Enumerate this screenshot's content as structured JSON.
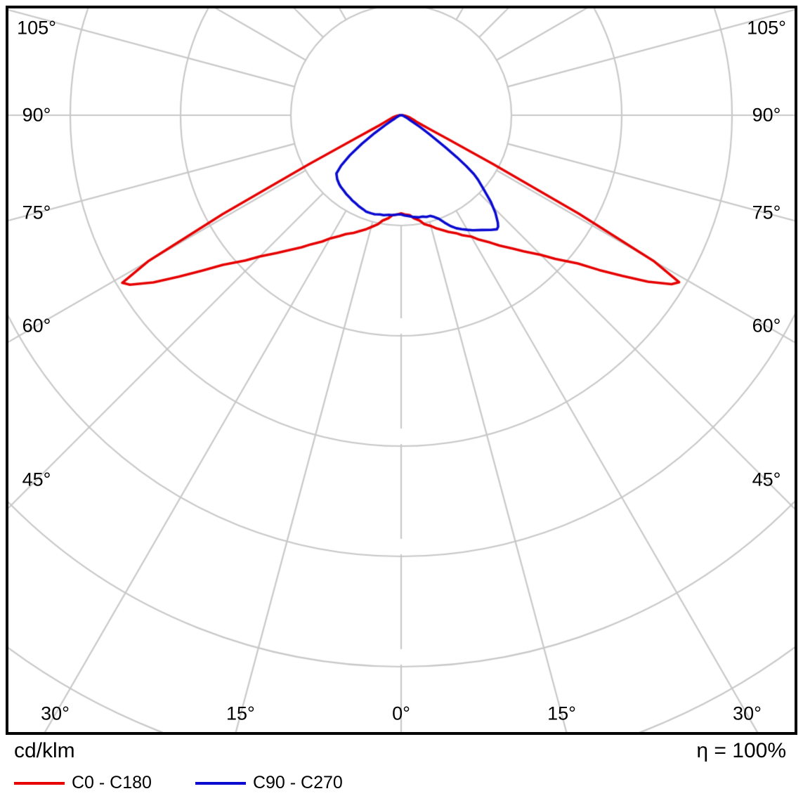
{
  "chart_data": {
    "type": "polar",
    "subtype": "photometric-intensity-distribution",
    "units_label": "cd/klm",
    "efficiency_label": "η = 100%",
    "angle_label_suffix": "°",
    "angle_ticks_side_deg": [
      105,
      90,
      75,
      60,
      45
    ],
    "angle_ticks_bottom_deg": [
      30,
      15
    ],
    "angle_tick_center_deg": 0,
    "gamma_axis": {
      "min": -105,
      "max": 105,
      "tick_step_deg": 15
    },
    "r_axis": {
      "rings": 6,
      "ring_step_cd_klm": 100,
      "labels_visible": false
    },
    "grid_color": "#c8c8c8",
    "background_color": "#ffffff",
    "legend": [
      {
        "label": "C0 - C180",
        "color": "#e60000"
      },
      {
        "label": "C90 - C270",
        "color": "#0a0ad0"
      }
    ],
    "series": [
      {
        "name": "C0 - C180",
        "color": "#e60000",
        "points": [
          [
            -90,
            1
          ],
          [
            -85,
            3
          ],
          [
            -80,
            5
          ],
          [
            -75,
            8
          ],
          [
            -70,
            12
          ],
          [
            -67,
            16
          ],
          [
            -65,
            22
          ],
          [
            -64,
            30
          ],
          [
            -63,
            48
          ],
          [
            -62,
            95
          ],
          [
            -61,
            185
          ],
          [
            -60,
            265
          ],
          [
            -59,
            295
          ],
          [
            -58,
            290
          ],
          [
            -56,
            271
          ],
          [
            -54,
            249
          ],
          [
            -52,
            229
          ],
          [
            -50,
            211
          ],
          [
            -47,
            193
          ],
          [
            -45,
            181
          ],
          [
            -42,
            168
          ],
          [
            -40,
            160
          ],
          [
            -37,
            150
          ],
          [
            -35,
            143
          ],
          [
            -32,
            135
          ],
          [
            -30,
            129
          ],
          [
            -27,
            123
          ],
          [
            -25,
            119
          ],
          [
            -22,
            115
          ],
          [
            -20,
            112
          ],
          [
            -17,
            108
          ],
          [
            -15,
            105
          ],
          [
            -12,
            101
          ],
          [
            -10,
            97
          ],
          [
            -7,
            94
          ],
          [
            -5,
            91
          ],
          [
            -2,
            90
          ],
          [
            0,
            89
          ],
          [
            2,
            90
          ],
          [
            5,
            91
          ],
          [
            7,
            94
          ],
          [
            10,
            97
          ],
          [
            12,
            101
          ],
          [
            15,
            104
          ],
          [
            17,
            107
          ],
          [
            20,
            111
          ],
          [
            22,
            114
          ],
          [
            25,
            118
          ],
          [
            27,
            122
          ],
          [
            30,
            127
          ],
          [
            32,
            133
          ],
          [
            35,
            141
          ],
          [
            37,
            148
          ],
          [
            40,
            158
          ],
          [
            42,
            166
          ],
          [
            45,
            179
          ],
          [
            47,
            191
          ],
          [
            50,
            209
          ],
          [
            52,
            228
          ],
          [
            54,
            248
          ],
          [
            56,
            270
          ],
          [
            58,
            289
          ],
          [
            59,
            294
          ],
          [
            60,
            264
          ],
          [
            61,
            184
          ],
          [
            62,
            94
          ],
          [
            63,
            47
          ],
          [
            64,
            29
          ],
          [
            65,
            21
          ],
          [
            67,
            15
          ],
          [
            70,
            12
          ],
          [
            75,
            8
          ],
          [
            80,
            5
          ],
          [
            85,
            3
          ],
          [
            90,
            1
          ]
        ]
      },
      {
        "name": "C90 - C270",
        "color": "#0a0ad0",
        "points": [
          [
            -90,
            0
          ],
          [
            -85,
            1
          ],
          [
            -80,
            1
          ],
          [
            -75,
            2
          ],
          [
            -70,
            3
          ],
          [
            -65,
            5
          ],
          [
            -62,
            7
          ],
          [
            -60,
            10
          ],
          [
            -58,
            17
          ],
          [
            -56,
            29
          ],
          [
            -54,
            44
          ],
          [
            -52,
            59
          ],
          [
            -50,
            71
          ],
          [
            -48,
            79
          ],
          [
            -45,
            82
          ],
          [
            -42,
            84
          ],
          [
            -40,
            85
          ],
          [
            -37,
            86
          ],
          [
            -35,
            87
          ],
          [
            -32,
            88
          ],
          [
            -30,
            89
          ],
          [
            -27,
            90
          ],
          [
            -25,
            91
          ],
          [
            -22,
            92
          ],
          [
            -20,
            93
          ],
          [
            -17,
            93
          ],
          [
            -15,
            93
          ],
          [
            -12,
            92
          ],
          [
            -10,
            92
          ],
          [
            -7,
            91
          ],
          [
            -5,
            91
          ],
          [
            -2,
            90
          ],
          [
            0,
            90
          ],
          [
            2,
            91
          ],
          [
            5,
            92
          ],
          [
            7,
            93
          ],
          [
            10,
            94
          ],
          [
            12,
            94
          ],
          [
            14,
            95
          ],
          [
            16,
            95
          ],
          [
            18,
            97
          ],
          [
            20,
            100
          ],
          [
            22,
            105
          ],
          [
            24,
            110
          ],
          [
            26,
            114
          ],
          [
            28,
            117
          ],
          [
            30,
            120
          ],
          [
            32,
            123
          ],
          [
            35,
            127
          ],
          [
            38,
            132
          ],
          [
            40,
            135
          ],
          [
            41,
            134
          ],
          [
            42,
            131
          ],
          [
            44,
            123
          ],
          [
            46,
            113
          ],
          [
            48,
            101
          ],
          [
            50,
            91
          ],
          [
            51,
            85
          ],
          [
            52,
            75
          ],
          [
            53,
            63
          ],
          [
            54,
            50
          ],
          [
            55,
            39
          ],
          [
            56,
            31
          ],
          [
            57,
            25
          ],
          [
            58,
            20
          ],
          [
            60,
            12
          ],
          [
            62,
            8
          ],
          [
            65,
            6
          ],
          [
            70,
            3
          ],
          [
            75,
            2
          ],
          [
            80,
            1
          ],
          [
            85,
            1
          ],
          [
            90,
            0
          ]
        ]
      }
    ]
  }
}
